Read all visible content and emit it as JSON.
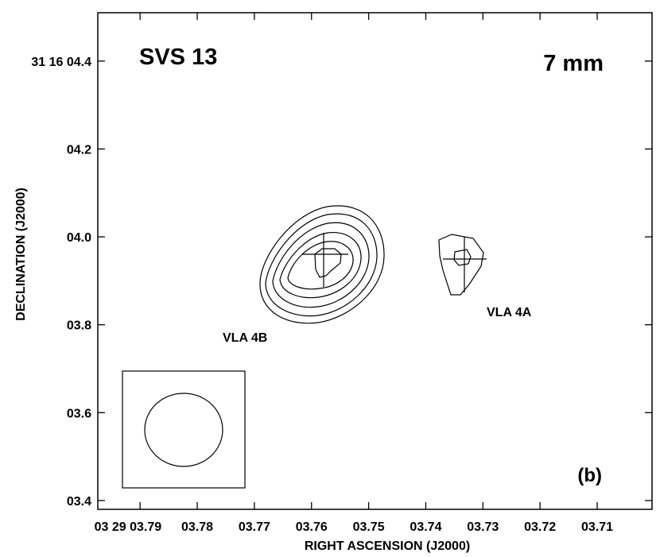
{
  "chart_data": {
    "type": "contour",
    "title": "SVS 13",
    "band_label": "7 mm",
    "panel_label": "(b)",
    "xlabel": "RIGHT ASCENSION (J2000)",
    "ylabel": "DECLINATION (J2000)",
    "x_ticks": [
      {
        "value": 3.79,
        "label": "03 29 03.79"
      },
      {
        "value": 3.78,
        "label": "03.78"
      },
      {
        "value": 3.77,
        "label": "03.77"
      },
      {
        "value": 3.76,
        "label": "03.76"
      },
      {
        "value": 3.75,
        "label": "03.75"
      },
      {
        "value": 3.74,
        "label": "03.74"
      },
      {
        "value": 3.73,
        "label": "03.73"
      },
      {
        "value": 3.72,
        "label": "03.72"
      },
      {
        "value": 3.71,
        "label": "03.71"
      }
    ],
    "y_ticks": [
      {
        "value": 4.4,
        "label": "31 16 04.4"
      },
      {
        "value": 4.2,
        "label": "04.2"
      },
      {
        "value": 4.0,
        "label": "04.0"
      },
      {
        "value": 3.8,
        "label": "03.8"
      },
      {
        "value": 3.6,
        "label": "03.6"
      },
      {
        "value": 3.4,
        "label": "03.4"
      }
    ],
    "xlim": [
      3.7974,
      3.7004
    ],
    "ylim": [
      3.38,
      4.51
    ],
    "sources": [
      {
        "name": "VLA 4B",
        "ra": 3.7585,
        "dec": 3.96,
        "n_contours": 6
      },
      {
        "name": "VLA 4A",
        "ra": 3.7326,
        "dec": 3.95,
        "n_contours": 2
      }
    ],
    "beam": {
      "ra": 3.7755,
      "dec": 3.56,
      "major": 0.166,
      "minor": 0.156
    }
  }
}
